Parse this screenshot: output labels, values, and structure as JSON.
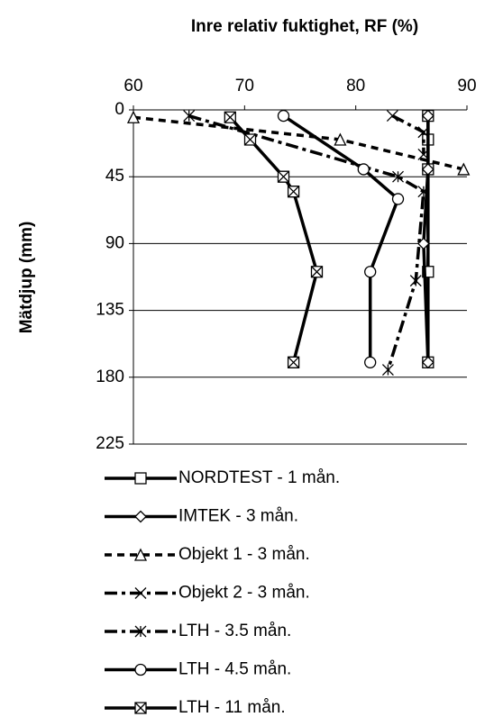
{
  "chart_data": {
    "type": "line",
    "title": "Inre relativ fuktighet, RF (%)",
    "y_label": "Mätdjup (mm)",
    "xlim": [
      60,
      90
    ],
    "xticks": [
      60,
      70,
      80,
      90
    ],
    "x_axis_position": "top",
    "ylim": [
      0,
      225
    ],
    "yticks": [
      0,
      45,
      90,
      135,
      180,
      225
    ],
    "y_inverted": true,
    "grid": true,
    "legend": "bottom",
    "series": [
      {
        "name": "NORDTEST - 1 mån.",
        "color": "#000000",
        "marker": "square",
        "dash": "solid",
        "x": [
          86.5,
          86.5,
          86.5,
          86.5,
          86.5
        ],
        "values": [
          4,
          20,
          40,
          109,
          170
        ]
      },
      {
        "name": "IMTEK - 3 mån.",
        "color": "#000000",
        "marker": "diamond",
        "dash": "solid",
        "x": [
          86.5,
          86.5,
          86.1,
          86.5
        ],
        "values": [
          4,
          40,
          90,
          170
        ]
      },
      {
        "name": "Objekt 1 - 3 mån.",
        "color": "#000000",
        "marker": "triangle",
        "dash": "dashed",
        "x": [
          60,
          78.6,
          89.7
        ],
        "values": [
          5,
          20,
          40
        ]
      },
      {
        "name": "Objekt 2 - 3 mån.",
        "color": "#000000",
        "marker": "x",
        "dash": "dashdot",
        "x": [
          83.3,
          86.1,
          86.1
        ],
        "values": [
          4,
          15,
          30
        ]
      },
      {
        "name": "LTH - 3.5 mån.",
        "color": "#000000",
        "marker": "asterisk",
        "dash": "dashdot",
        "x": [
          65,
          83.8,
          86.1,
          85.4,
          82.9
        ],
        "values": [
          4,
          45,
          55,
          115,
          175
        ]
      },
      {
        "name": "LTH - 4.5 mån.",
        "color": "#000000",
        "marker": "circle",
        "dash": "solid",
        "x": [
          73.5,
          80.7,
          83.8,
          81.3,
          81.3
        ],
        "values": [
          4,
          40,
          60,
          109,
          170
        ]
      },
      {
        "name": "LTH - 11 mån.",
        "color": "#000000",
        "marker": "asterisk-square",
        "dash": "solid",
        "x": [
          68.7,
          70.5,
          73.5,
          74.4,
          76.5,
          74.4
        ],
        "values": [
          5,
          20,
          45,
          55,
          109,
          170
        ]
      }
    ]
  }
}
